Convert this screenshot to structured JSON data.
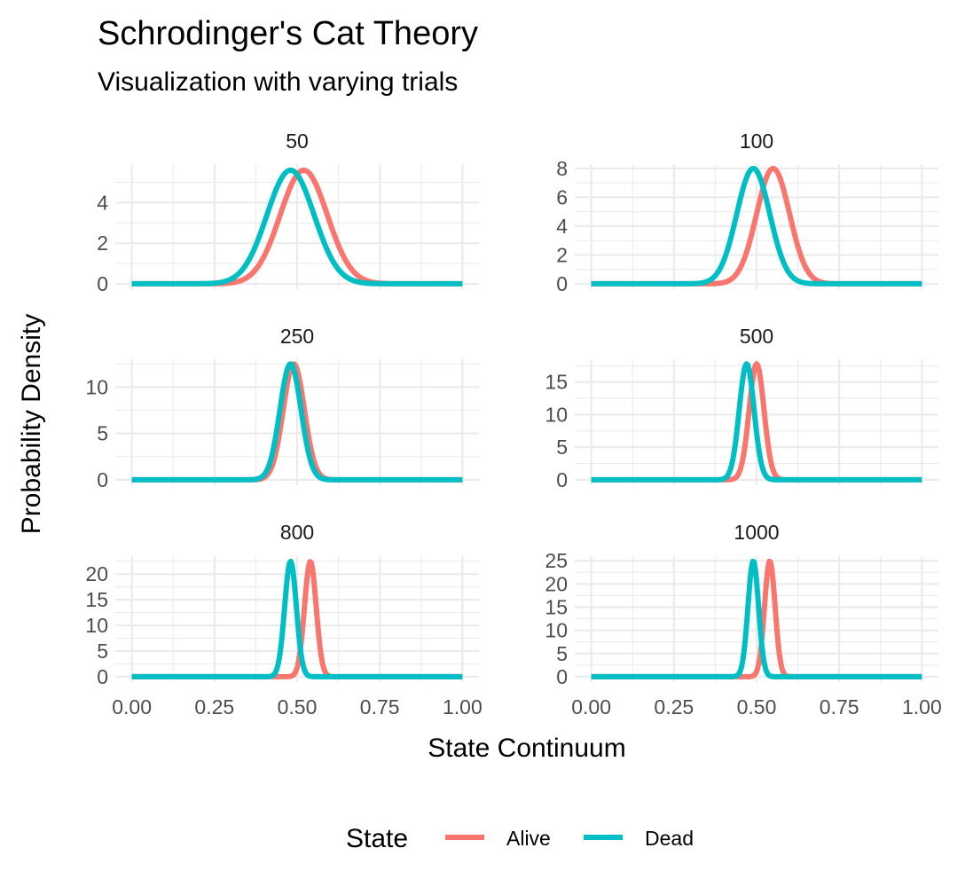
{
  "chart_data": {
    "type": "line",
    "title": "Schrodinger's Cat Theory",
    "subtitle": "Visualization with varying trials",
    "xlabel": "State Continuum",
    "ylabel": "Probability Density",
    "xlim": [
      0,
      1
    ],
    "x_ticks": [
      "0.00",
      "0.25",
      "0.50",
      "0.75",
      "1.00"
    ],
    "grid": true,
    "legend": {
      "title": "State",
      "placement": "bottom",
      "entries": [
        {
          "name": "Alive",
          "color": "#F8766D"
        },
        {
          "name": "Dead",
          "color": "#00BFC4"
        }
      ]
    },
    "facets": [
      {
        "label": "50",
        "ylim": [
          0,
          5.9
        ],
        "y_ticks": [
          0,
          2,
          4
        ],
        "series": [
          {
            "name": "Alive",
            "peak_x": 0.52,
            "peak_y": 5.6,
            "sd": 0.0713
          },
          {
            "name": "Dead",
            "peak_x": 0.48,
            "peak_y": 5.6,
            "sd": 0.0713
          }
        ]
      },
      {
        "label": "100",
        "ylim": [
          0,
          8.3
        ],
        "y_ticks": [
          0,
          2,
          4,
          6,
          8
        ],
        "series": [
          {
            "name": "Alive",
            "peak_x": 0.55,
            "peak_y": 8.0,
            "sd": 0.0499
          },
          {
            "name": "Dead",
            "peak_x": 0.49,
            "peak_y": 8.0,
            "sd": 0.0499
          }
        ]
      },
      {
        "label": "250",
        "ylim": [
          0,
          13.0
        ],
        "y_ticks": [
          0,
          5,
          10
        ],
        "series": [
          {
            "name": "Alive",
            "peak_x": 0.49,
            "peak_y": 12.5,
            "sd": 0.0319
          },
          {
            "name": "Dead",
            "peak_x": 0.48,
            "peak_y": 12.5,
            "sd": 0.0319
          }
        ]
      },
      {
        "label": "500",
        "ylim": [
          0,
          18.5
        ],
        "y_ticks": [
          0,
          5,
          10,
          15
        ],
        "series": [
          {
            "name": "Alive",
            "peak_x": 0.5,
            "peak_y": 17.8,
            "sd": 0.0224
          },
          {
            "name": "Dead",
            "peak_x": 0.47,
            "peak_y": 17.8,
            "sd": 0.0224
          }
        ]
      },
      {
        "label": "800",
        "ylim": [
          0,
          23.5
        ],
        "y_ticks": [
          0,
          5,
          10,
          15,
          20
        ],
        "series": [
          {
            "name": "Alive",
            "peak_x": 0.54,
            "peak_y": 22.5,
            "sd": 0.0177
          },
          {
            "name": "Dead",
            "peak_x": 0.48,
            "peak_y": 22.5,
            "sd": 0.0177
          }
        ]
      },
      {
        "label": "1000",
        "ylim": [
          0,
          26.0
        ],
        "y_ticks": [
          0,
          5,
          10,
          15,
          20,
          25
        ],
        "series": [
          {
            "name": "Alive",
            "peak_x": 0.54,
            "peak_y": 25.0,
            "sd": 0.016
          },
          {
            "name": "Dead",
            "peak_x": 0.49,
            "peak_y": 25.0,
            "sd": 0.016
          }
        ]
      }
    ]
  }
}
